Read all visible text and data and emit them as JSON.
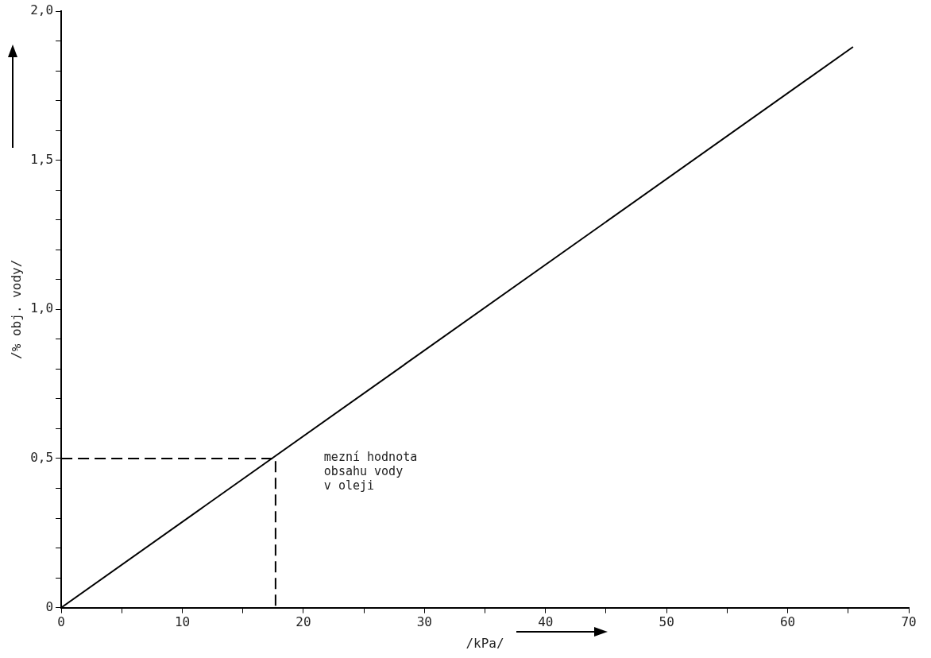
{
  "chart_data": {
    "type": "line",
    "xlabel": "/kPa/",
    "ylabel": "/% obj. vody/",
    "xlim": [
      0,
      70
    ],
    "xticks": [
      0,
      {
        "value": 5,
        "label": null
      },
      10,
      {
        "value": 15,
        "label": null
      },
      20,
      {
        "value": 25,
        "label": null
      },
      30,
      {
        "value": 35,
        "label": null
      },
      40,
      {
        "value": 45,
        "label": null
      },
      50,
      {
        "value": 55,
        "label": null
      },
      60,
      {
        "value": 65,
        "label": null
      },
      70
    ],
    "ylim": [
      0,
      2.0
    ],
    "yticks": [
      0,
      {
        "value": 0.1,
        "label": null
      },
      {
        "value": 0.2,
        "label": null
      },
      {
        "value": 0.3,
        "label": null
      },
      {
        "value": 0.4,
        "label": null
      },
      {
        "value": 0.5,
        "label": "0,5"
      },
      {
        "value": 0.6,
        "label": null
      },
      {
        "value": 0.7,
        "label": null
      },
      {
        "value": 0.8,
        "label": null
      },
      {
        "value": 0.9,
        "label": null
      },
      {
        "value": 1.0,
        "label": "1,0"
      },
      {
        "value": 1.1,
        "label": null
      },
      {
        "value": 1.2,
        "label": null
      },
      {
        "value": 1.3,
        "label": null
      },
      {
        "value": 1.4,
        "label": null
      },
      {
        "value": 1.5,
        "label": "1,5"
      },
      {
        "value": 1.6,
        "label": null
      },
      {
        "value": 1.7,
        "label": null
      },
      {
        "value": 1.8,
        "label": null
      },
      {
        "value": 1.9,
        "label": null
      },
      {
        "value": 2.0,
        "label": "2,0"
      }
    ],
    "series": [
      {
        "color": "#000000",
        "x": [
          0,
          65.4
        ],
        "values": [
          0,
          1.88
        ],
        "line_style": "solid"
      },
      {
        "color": "#000000",
        "x": [
          0,
          17.7,
          17.7
        ],
        "values": [
          0.5,
          0.5,
          0
        ],
        "line_style": "dashed"
      }
    ],
    "annotations": [
      "mezní hodnota\nobsahu vody\nv oleji"
    ],
    "marker": "none"
  }
}
